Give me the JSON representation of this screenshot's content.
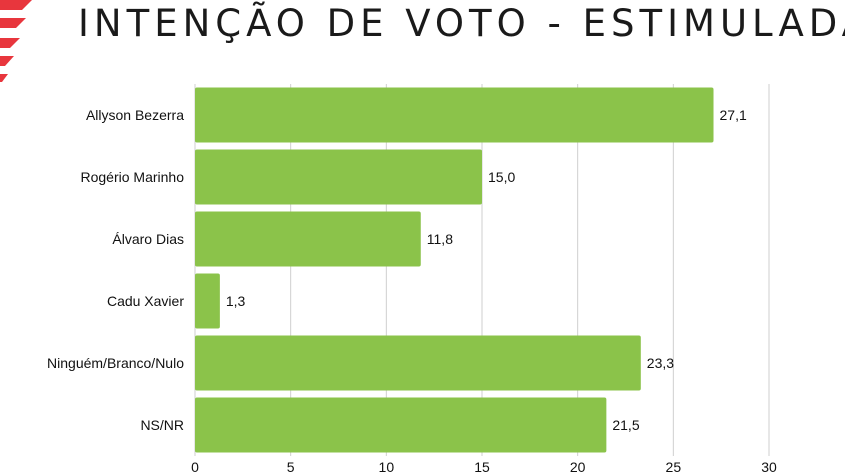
{
  "header": {
    "title": "INTENÇÃO DE VOTO - ESTIMULADA"
  },
  "colors": {
    "bar": "#8bc34a",
    "grid": "#cfcfcf",
    "logo_red": "#e8363d"
  },
  "chart_data": {
    "type": "bar",
    "orientation": "horizontal",
    "categories": [
      "Allyson Bezerra",
      "Rogério Marinho",
      "Álvaro Dias",
      "Cadu Xavier",
      "Ninguém/Branco/Nulo",
      "NS/NR"
    ],
    "values": [
      27.1,
      15.0,
      11.8,
      1.3,
      23.3,
      21.5
    ],
    "value_labels": [
      "27,1",
      "15,0",
      "11,8",
      "1,3",
      "23,3",
      "21,5"
    ],
    "xlim": [
      0,
      30
    ],
    "xticks": [
      0,
      5,
      10,
      15,
      20,
      25,
      30
    ],
    "grid": true,
    "legend": "none"
  }
}
